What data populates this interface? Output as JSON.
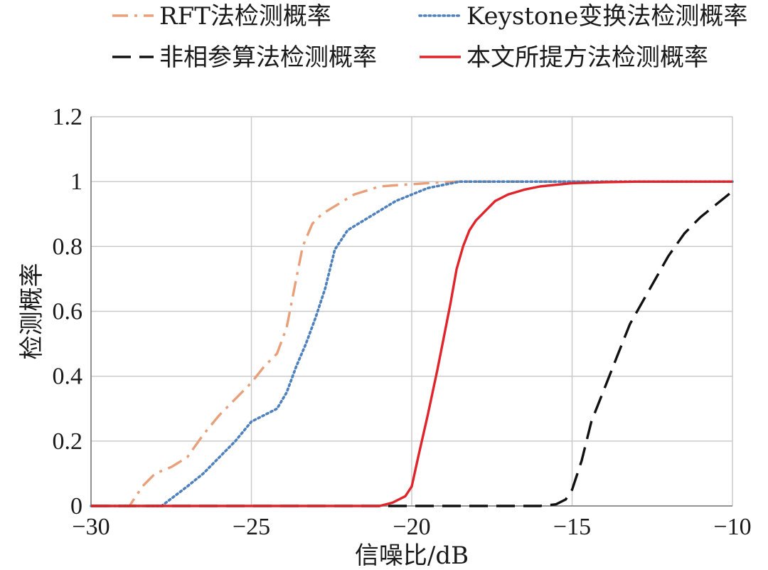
{
  "chart_data": {
    "type": "line",
    "xlabel": "信噪比/dB",
    "ylabel": "检测概率",
    "xlim": [
      -30,
      -10
    ],
    "ylim": [
      0,
      1.2
    ],
    "x_ticks": [
      -30,
      -25,
      -20,
      -15,
      -10
    ],
    "x_tick_labels": [
      "−30",
      "−25",
      "−20",
      "−15",
      "−10"
    ],
    "y_ticks": [
      0,
      0.2,
      0.4,
      0.6,
      0.8,
      1,
      1.2
    ],
    "y_tick_labels": [
      "0",
      "0.2",
      "0.4",
      "0.6",
      "0.8",
      "1",
      "1.2"
    ],
    "grid": true,
    "legend_placement": "top",
    "series": [
      {
        "name": "RFT法检测概率",
        "color": "#e8a07a",
        "style": "dashdot",
        "x": [
          -30,
          -28.8,
          -28.4,
          -28,
          -27.5,
          -27,
          -26.5,
          -26,
          -25.5,
          -25,
          -24.6,
          -24.2,
          -23.9,
          -23.6,
          -23.4,
          -23.1,
          -22.8,
          -22.3,
          -21.8,
          -21,
          -20.3,
          -19.5,
          -18.6,
          -18,
          -10
        ],
        "y": [
          0,
          0,
          0.06,
          0.1,
          0.12,
          0.15,
          0.22,
          0.28,
          0.33,
          0.38,
          0.43,
          0.47,
          0.55,
          0.7,
          0.8,
          0.87,
          0.9,
          0.93,
          0.96,
          0.985,
          0.99,
          0.995,
          1,
          1,
          1
        ]
      },
      {
        "name": "Keystone变换法检测概率",
        "color": "#4f81bd",
        "style": "dotted",
        "x": [
          -30,
          -27.8,
          -27.4,
          -27,
          -26.5,
          -26,
          -25.5,
          -25,
          -24.6,
          -24.2,
          -23.9,
          -23.6,
          -23.3,
          -23,
          -22.7,
          -22.4,
          -22,
          -21.5,
          -21,
          -20.5,
          -20,
          -19.5,
          -19,
          -18.5,
          -18,
          -10
        ],
        "y": [
          0,
          0,
          0.03,
          0.06,
          0.1,
          0.15,
          0.2,
          0.26,
          0.28,
          0.3,
          0.35,
          0.43,
          0.5,
          0.58,
          0.67,
          0.79,
          0.85,
          0.88,
          0.91,
          0.94,
          0.96,
          0.98,
          0.99,
          1,
          1,
          1
        ]
      },
      {
        "name": "非相参算法检测概率",
        "color": "#111111",
        "style": "dashed",
        "x": [
          -30,
          -16,
          -15.5,
          -15.2,
          -15,
          -14.7,
          -14.4,
          -14,
          -13.6,
          -13.2,
          -12.8,
          -12.4,
          -12,
          -11.5,
          -11,
          -10.5,
          -10
        ],
        "y": [
          0,
          0,
          0.005,
          0.02,
          0.05,
          0.14,
          0.26,
          0.36,
          0.46,
          0.56,
          0.63,
          0.7,
          0.77,
          0.84,
          0.89,
          0.93,
          0.97
        ]
      },
      {
        "name": "本文所提方法检测概率",
        "color": "#e0242b",
        "style": "solid",
        "x": [
          -30,
          -21,
          -20.6,
          -20.2,
          -20,
          -19.8,
          -19.5,
          -19.2,
          -19,
          -18.8,
          -18.6,
          -18.4,
          -18.2,
          -18,
          -17.7,
          -17.4,
          -17,
          -16.5,
          -16,
          -15.5,
          -15,
          -14,
          -13,
          -12,
          -10
        ],
        "y": [
          0,
          0,
          0.01,
          0.03,
          0.06,
          0.15,
          0.28,
          0.42,
          0.52,
          0.62,
          0.73,
          0.8,
          0.85,
          0.88,
          0.91,
          0.94,
          0.96,
          0.975,
          0.985,
          0.99,
          0.995,
          0.998,
          1,
          1,
          1
        ]
      }
    ]
  }
}
